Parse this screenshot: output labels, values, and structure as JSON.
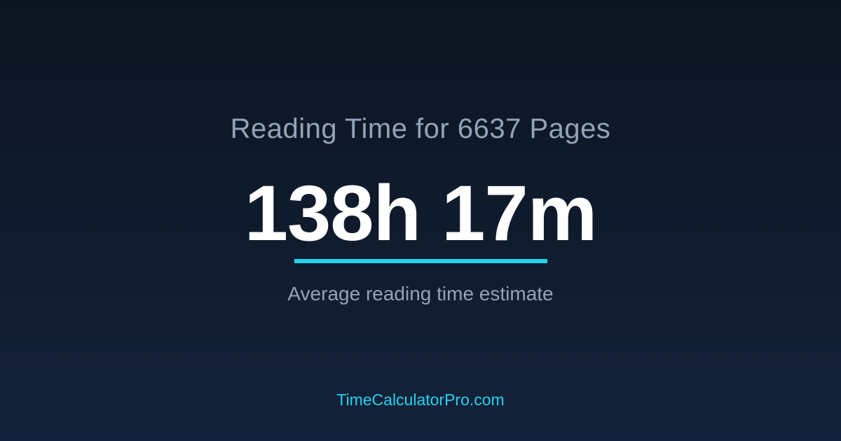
{
  "title": "Reading Time for 6637 Pages",
  "value": "138h 17m",
  "subtitle": "Average reading time estimate",
  "site": "TimeCalculatorPro.com",
  "colors": {
    "accent": "#22d3ee",
    "muted": "#94a3b8",
    "background": "#0f172a"
  }
}
